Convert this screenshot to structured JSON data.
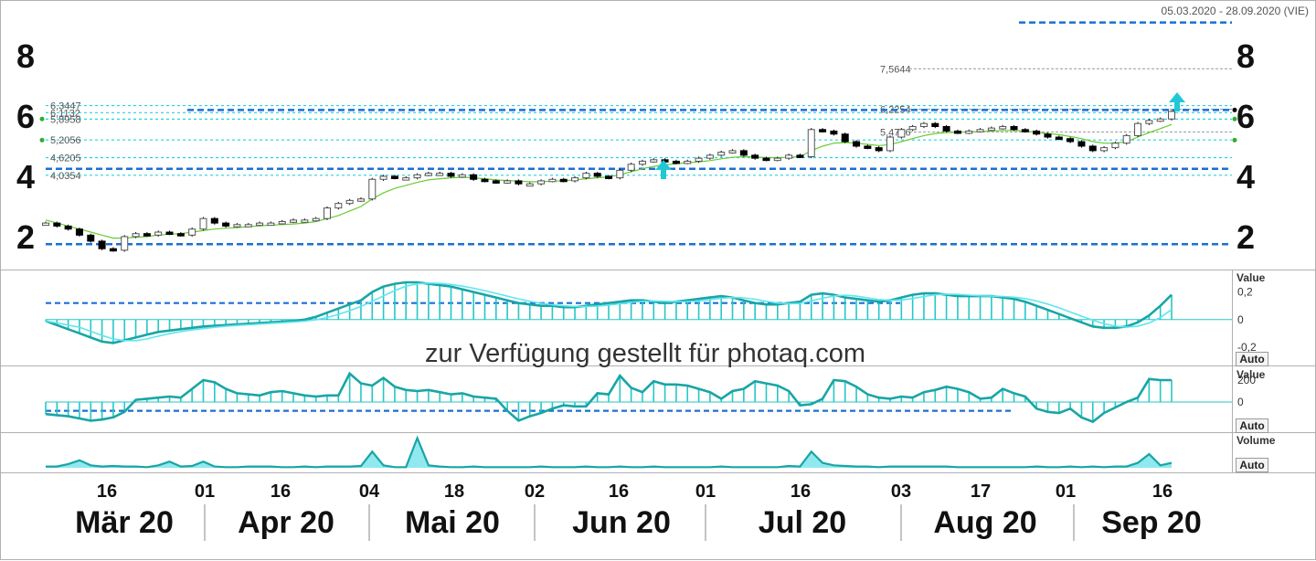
{
  "date_range": "05.03.2020 - 28.09.2020 (VIE)",
  "watermark": "zur Verfügung gestellt für photaq.com",
  "auto_label": "Auto",
  "colors": {
    "candle_up": "#000000",
    "ma_line": "#66cc33",
    "guide_cyan": "#22d3e6",
    "guide_blue": "#1a6fd6",
    "indicator": "#26c6c6",
    "indicator_dark": "#1aa5a5",
    "arrow": "#20c8d6"
  },
  "chart_data": [
    {
      "type": "line",
      "panel": "price",
      "ylim": [
        1.0,
        9.3
      ],
      "yticks_left": [
        "8",
        "6",
        "4",
        "2"
      ],
      "yticks_right": [
        "8",
        "6",
        "4",
        "2"
      ],
      "levels": [
        {
          "label": "6,3447",
          "value": 6.3447
        },
        {
          "label": "6,1132",
          "value": 6.11
        },
        {
          "label": "5,8958",
          "value": 5.8958
        },
        {
          "label": "5,2056",
          "value": 5.2056
        },
        {
          "label": "4,6205",
          "value": 4.6205
        },
        {
          "label": "4,0354",
          "value": 4.0354
        }
      ],
      "annotations": [
        {
          "label": "7,5644",
          "value": 7.5644
        },
        {
          "label": "6,2254",
          "value": 6.2254
        },
        {
          "label": "5,4706",
          "value": 5.4706
        }
      ],
      "dashed_levels": [
        9.1,
        6.2,
        4.25,
        1.75
      ],
      "close": [
        2.45,
        2.35,
        2.25,
        2.05,
        1.85,
        1.6,
        1.55,
        2.0,
        2.1,
        2.05,
        2.15,
        2.1,
        2.05,
        2.25,
        2.6,
        2.45,
        2.35,
        2.4,
        2.4,
        2.45,
        2.45,
        2.5,
        2.55,
        2.55,
        2.6,
        2.95,
        3.1,
        3.2,
        3.25,
        3.9,
        4.0,
        3.95,
        3.95,
        4.05,
        4.1,
        4.1,
        4.0,
        4.05,
        3.9,
        3.85,
        3.8,
        3.85,
        3.75,
        3.75,
        3.85,
        3.9,
        3.85,
        3.95,
        4.1,
        4.0,
        3.95,
        4.2,
        4.4,
        4.5,
        4.55,
        4.5,
        4.45,
        4.5,
        4.6,
        4.7,
        4.8,
        4.85,
        4.7,
        4.6,
        4.55,
        4.6,
        4.7,
        4.65,
        5.55,
        5.5,
        5.4,
        5.15,
        5.0,
        4.95,
        4.85,
        5.3,
        5.55,
        5.65,
        5.75,
        5.65,
        5.5,
        5.45,
        5.5,
        5.55,
        5.6,
        5.65,
        5.55,
        5.5,
        5.4,
        5.3,
        5.25,
        5.15,
        5.0,
        4.85,
        4.95,
        5.1,
        5.35,
        5.75,
        5.85,
        5.9,
        6.15
      ],
      "ma": [
        2.55,
        2.45,
        2.35,
        2.25,
        2.15,
        2.05,
        1.95,
        1.95,
        1.98,
        2.0,
        2.05,
        2.08,
        2.1,
        2.15,
        2.2,
        2.25,
        2.28,
        2.3,
        2.33,
        2.36,
        2.38,
        2.4,
        2.42,
        2.45,
        2.5,
        2.6,
        2.7,
        2.85,
        3.0,
        3.25,
        3.45,
        3.6,
        3.7,
        3.8,
        3.88,
        3.92,
        3.95,
        3.97,
        3.95,
        3.92,
        3.88,
        3.86,
        3.84,
        3.82,
        3.82,
        3.84,
        3.85,
        3.88,
        3.92,
        3.95,
        3.98,
        4.05,
        4.15,
        4.25,
        4.33,
        4.38,
        4.42,
        4.45,
        4.48,
        4.52,
        4.58,
        4.63,
        4.65,
        4.64,
        4.62,
        4.62,
        4.63,
        4.65,
        4.85,
        5.0,
        5.1,
        5.12,
        5.1,
        5.06,
        5.02,
        5.05,
        5.15,
        5.25,
        5.35,
        5.42,
        5.45,
        5.46,
        5.47,
        5.48,
        5.5,
        5.52,
        5.52,
        5.5,
        5.46,
        5.42,
        5.38,
        5.32,
        5.25,
        5.15,
        5.1,
        5.1,
        5.15,
        5.3,
        5.45,
        5.58,
        5.72
      ]
    },
    {
      "type": "bar",
      "panel": "indicator-1",
      "ylabel": "Value",
      "yticks": [
        "0,2",
        "0",
        "-0,2"
      ],
      "ylim": [
        -0.3,
        0.33
      ],
      "values": [
        -0.01,
        -0.04,
        -0.07,
        -0.1,
        -0.13,
        -0.16,
        -0.17,
        -0.15,
        -0.13,
        -0.11,
        -0.09,
        -0.08,
        -0.07,
        -0.06,
        -0.05,
        -0.045,
        -0.04,
        -0.035,
        -0.03,
        -0.025,
        -0.02,
        -0.015,
        -0.01,
        0.0,
        0.02,
        0.05,
        0.08,
        0.11,
        0.14,
        0.2,
        0.24,
        0.26,
        0.27,
        0.27,
        0.26,
        0.25,
        0.24,
        0.22,
        0.2,
        0.18,
        0.16,
        0.14,
        0.12,
        0.11,
        0.1,
        0.1,
        0.09,
        0.09,
        0.1,
        0.11,
        0.12,
        0.13,
        0.14,
        0.14,
        0.13,
        0.12,
        0.13,
        0.14,
        0.15,
        0.16,
        0.17,
        0.16,
        0.14,
        0.12,
        0.11,
        0.11,
        0.12,
        0.13,
        0.18,
        0.19,
        0.18,
        0.16,
        0.15,
        0.14,
        0.13,
        0.14,
        0.16,
        0.18,
        0.19,
        0.19,
        0.18,
        0.17,
        0.17,
        0.17,
        0.17,
        0.16,
        0.15,
        0.13,
        0.1,
        0.07,
        0.04,
        0.01,
        -0.02,
        -0.05,
        -0.06,
        -0.06,
        -0.05,
        -0.02,
        0.03,
        0.1,
        0.18
      ],
      "signal_dashed": 0.12
    },
    {
      "type": "bar",
      "panel": "indicator-2",
      "ylabel": "Value",
      "yticks": [
        "200",
        "0"
      ],
      "ylim": [
        -250,
        300
      ],
      "values": [
        -110,
        -120,
        -130,
        -150,
        -170,
        -160,
        -140,
        -90,
        20,
        30,
        40,
        50,
        40,
        120,
        200,
        180,
        120,
        80,
        70,
        60,
        90,
        100,
        80,
        60,
        50,
        60,
        60,
        260,
        170,
        150,
        220,
        140,
        110,
        100,
        110,
        90,
        70,
        80,
        50,
        40,
        30,
        -80,
        -170,
        -130,
        -100,
        -60,
        -30,
        -40,
        -40,
        80,
        70,
        240,
        130,
        90,
        190,
        160,
        160,
        150,
        120,
        90,
        30,
        100,
        120,
        190,
        170,
        150,
        100,
        -30,
        -20,
        30,
        200,
        190,
        140,
        70,
        40,
        30,
        50,
        40,
        90,
        110,
        140,
        120,
        90,
        30,
        40,
        120,
        80,
        50,
        -60,
        -90,
        -100,
        -60,
        -140,
        -180,
        -100,
        -50,
        0,
        40,
        210,
        200,
        200
      ],
      "signal_dashed": -80
    },
    {
      "type": "area",
      "panel": "volume",
      "ylabel": "Volume",
      "values": [
        2,
        2,
        6,
        12,
        4,
        2,
        3,
        2,
        2,
        1,
        4,
        10,
        2,
        3,
        10,
        2,
        1,
        1,
        2,
        2,
        2,
        1,
        1,
        2,
        1,
        2,
        2,
        2,
        3,
        26,
        4,
        1,
        1,
        48,
        4,
        2,
        1,
        1,
        2,
        1,
        1,
        1,
        1,
        1,
        2,
        1,
        1,
        1,
        2,
        1,
        1,
        2,
        1,
        1,
        2,
        1,
        1,
        1,
        1,
        1,
        2,
        1,
        1,
        1,
        1,
        1,
        3,
        2,
        26,
        8,
        4,
        3,
        2,
        2,
        1,
        2,
        2,
        2,
        2,
        2,
        2,
        1,
        1,
        1,
        1,
        1,
        1,
        1,
        2,
        1,
        1,
        2,
        1,
        2,
        1,
        2,
        2,
        8,
        22,
        4,
        8
      ]
    }
  ],
  "x_axis": {
    "day_ticks": [
      "16",
      "01",
      "16",
      "04",
      "18",
      "02",
      "16",
      "01",
      "16",
      "03",
      "17",
      "01",
      "16"
    ],
    "months": [
      "Mär 20",
      "Apr 20",
      "Mai 20",
      "Jun 20",
      "Jul 20",
      "Aug 20",
      "Sep 20"
    ]
  }
}
